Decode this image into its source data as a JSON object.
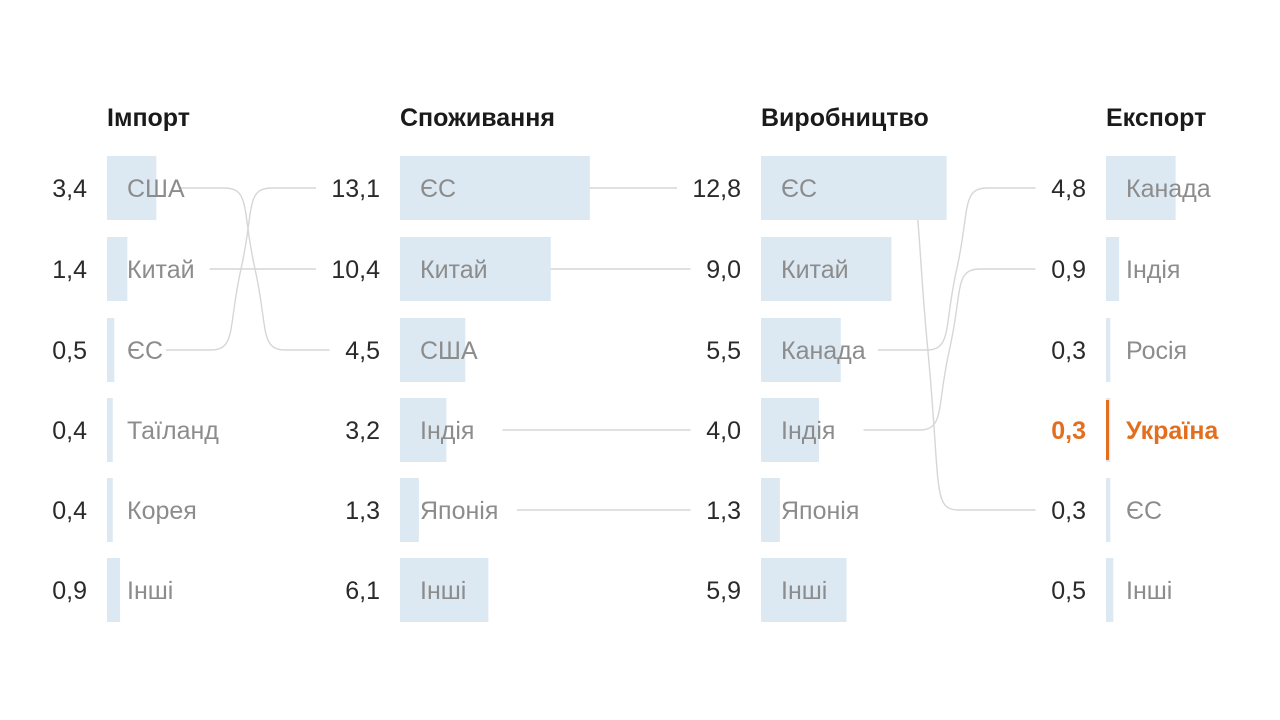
{
  "chart_data": {
    "type": "bar",
    "bar_color": "#dce9f3",
    "highlight_color": "#e36f1e",
    "connector_color": "#d6d6d6",
    "columns": [
      {
        "title": "Імпорт",
        "rows": [
          {
            "label": "США",
            "value": 3.4,
            "display": "3,4"
          },
          {
            "label": "Китай",
            "value": 1.4,
            "display": "1,4"
          },
          {
            "label": "ЄС",
            "value": 0.5,
            "display": "0,5"
          },
          {
            "label": "Таїланд",
            "value": 0.4,
            "display": "0,4"
          },
          {
            "label": "Корея",
            "value": 0.4,
            "display": "0,4"
          },
          {
            "label": "Інші",
            "value": 0.9,
            "display": "0,9"
          }
        ]
      },
      {
        "title": "Споживання",
        "rows": [
          {
            "label": "ЄС",
            "value": 13.1,
            "display": "13,1"
          },
          {
            "label": "Китай",
            "value": 10.4,
            "display": "10,4"
          },
          {
            "label": "США",
            "value": 4.5,
            "display": "4,5"
          },
          {
            "label": "Індія",
            "value": 3.2,
            "display": "3,2"
          },
          {
            "label": "Японія",
            "value": 1.3,
            "display": "1,3"
          },
          {
            "label": "Інші",
            "value": 6.1,
            "display": "6,1"
          }
        ]
      },
      {
        "title": "Виробництво",
        "rows": [
          {
            "label": "ЄС",
            "value": 12.8,
            "display": "12,8"
          },
          {
            "label": "Китай",
            "value": 9.0,
            "display": "9,0"
          },
          {
            "label": "Канада",
            "value": 5.5,
            "display": "5,5"
          },
          {
            "label": "Індія",
            "value": 4.0,
            "display": "4,0"
          },
          {
            "label": "Японія",
            "value": 1.3,
            "display": "1,3"
          },
          {
            "label": "Інші",
            "value": 5.9,
            "display": "5,9"
          }
        ]
      },
      {
        "title": "Експорт",
        "rows": [
          {
            "label": "Канада",
            "value": 4.8,
            "display": "4,8"
          },
          {
            "label": "Індія",
            "value": 0.9,
            "display": "0,9"
          },
          {
            "label": "Росія",
            "value": 0.3,
            "display": "0,3"
          },
          {
            "label": "Україна",
            "value": 0.3,
            "display": "0,3",
            "highlight": true
          },
          {
            "label": "ЄС",
            "value": 0.3,
            "display": "0,3"
          },
          {
            "label": "Інші",
            "value": 0.5,
            "display": "0,5"
          }
        ]
      }
    ],
    "connections": [
      {
        "from_column": 0,
        "from_row": 0,
        "to_column": 1,
        "to_row": 2
      },
      {
        "from_column": 0,
        "from_row": 1,
        "to_column": 1,
        "to_row": 1
      },
      {
        "from_column": 0,
        "from_row": 2,
        "to_column": 1,
        "to_row": 0
      },
      {
        "from_column": 1,
        "from_row": 0,
        "to_column": 2,
        "to_row": 0
      },
      {
        "from_column": 1,
        "from_row": 1,
        "to_column": 2,
        "to_row": 1
      },
      {
        "from_column": 1,
        "from_row": 3,
        "to_column": 2,
        "to_row": 3
      },
      {
        "from_column": 1,
        "from_row": 4,
        "to_column": 2,
        "to_row": 4
      },
      {
        "from_column": 2,
        "from_row": 0,
        "to_column": 3,
        "to_row": 4
      },
      {
        "from_column": 2,
        "from_row": 2,
        "to_column": 3,
        "to_row": 0
      },
      {
        "from_column": 2,
        "from_row": 3,
        "to_column": 3,
        "to_row": 1
      }
    ]
  }
}
